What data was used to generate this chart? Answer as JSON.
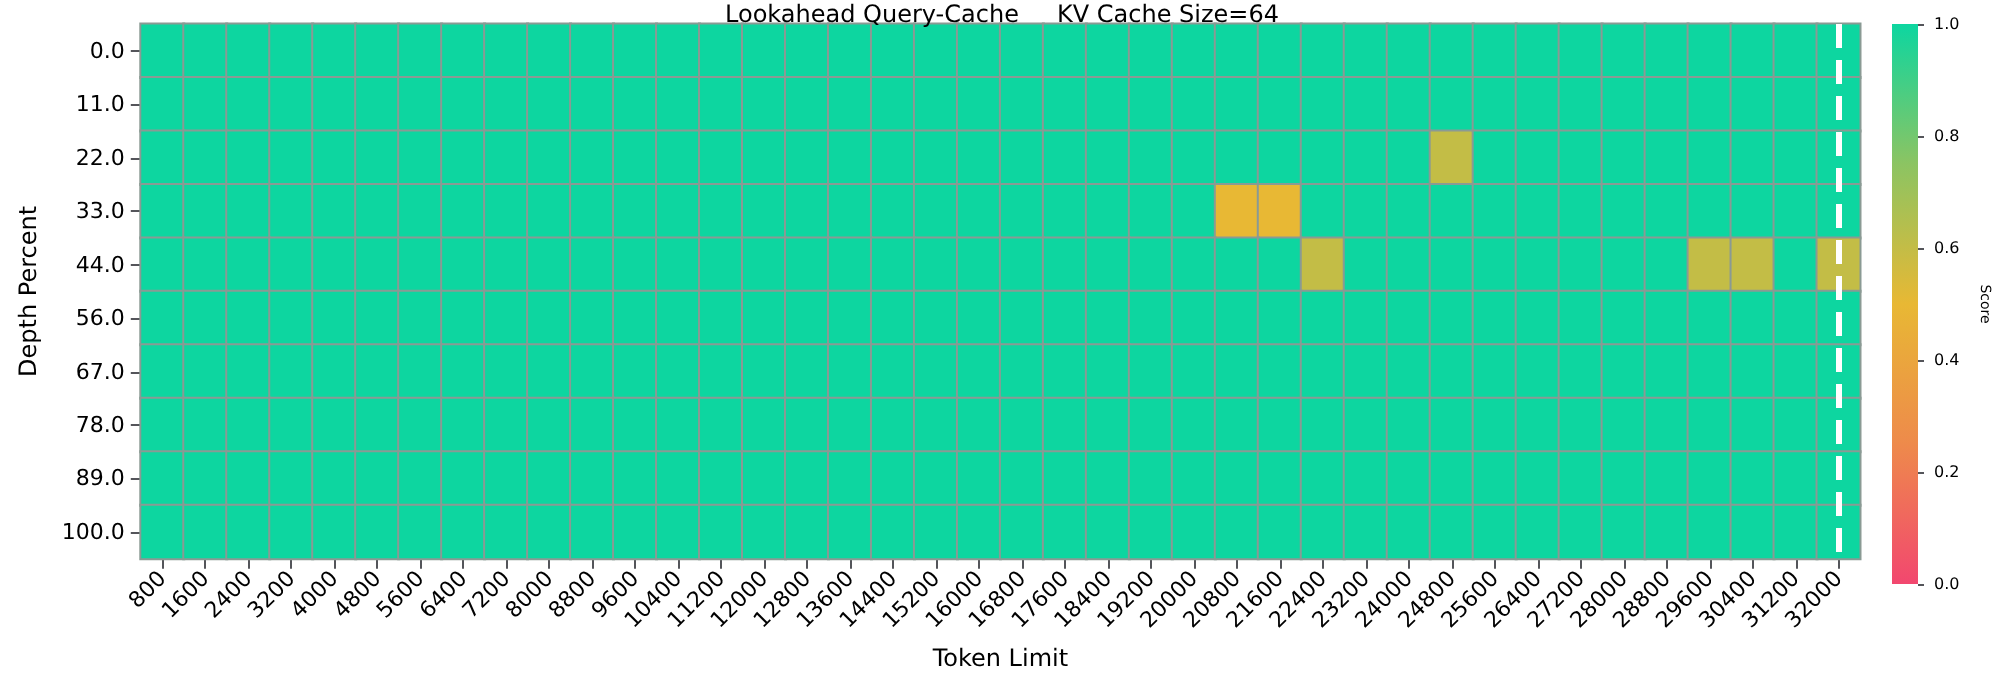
{
  "chart_data": {
    "type": "heatmap",
    "title": "Lookahead Query-Cache     KV Cache Size=64",
    "xlabel": "Token Limit",
    "ylabel": "Depth Percent",
    "clabel": "Score",
    "categories": [
      "800",
      "1600",
      "2400",
      "3200",
      "4000",
      "4800",
      "5600",
      "6400",
      "7200",
      "8000",
      "8800",
      "9600",
      "10400",
      "11200",
      "12000",
      "12800",
      "13600",
      "14400",
      "15200",
      "16000",
      "16800",
      "17600",
      "18400",
      "19200",
      "20000",
      "20800",
      "21600",
      "22400",
      "23200",
      "24000",
      "24800",
      "25600",
      "26400",
      "27200",
      "28000",
      "28800",
      "29600",
      "30400",
      "31200",
      "32000"
    ],
    "y_categories": [
      "0.0",
      "11.0",
      "22.0",
      "33.0",
      "44.0",
      "56.0",
      "67.0",
      "78.0",
      "89.0",
      "100.0"
    ],
    "cells": [
      [
        1,
        1,
        1,
        1,
        1,
        1,
        1,
        1,
        1,
        1,
        1,
        1,
        1,
        1,
        1,
        1,
        1,
        1,
        1,
        1,
        1,
        1,
        1,
        1,
        1,
        1,
        1,
        1,
        1,
        1,
        1,
        1,
        1,
        1,
        1,
        1,
        1,
        1,
        1,
        1
      ],
      [
        1,
        1,
        1,
        1,
        1,
        1,
        1,
        1,
        1,
        1,
        1,
        1,
        1,
        1,
        1,
        1,
        1,
        1,
        1,
        1,
        1,
        1,
        1,
        1,
        1,
        1,
        1,
        1,
        1,
        1,
        1,
        1,
        1,
        1,
        1,
        1,
        1,
        1,
        1,
        1
      ],
      [
        1,
        1,
        1,
        1,
        1,
        1,
        1,
        1,
        1,
        1,
        1,
        1,
        1,
        1,
        1,
        1,
        1,
        1,
        1,
        1,
        1,
        1,
        1,
        1,
        1,
        1,
        1,
        1,
        1,
        1,
        0.6,
        1,
        1,
        1,
        1,
        1,
        1,
        1,
        1,
        1
      ],
      [
        1,
        1,
        1,
        1,
        1,
        1,
        1,
        1,
        1,
        1,
        1,
        1,
        1,
        1,
        1,
        1,
        1,
        1,
        1,
        1,
        1,
        1,
        1,
        1,
        1,
        0.5,
        0.5,
        1,
        1,
        1,
        1,
        1,
        1,
        1,
        1,
        1,
        1,
        1,
        1,
        1
      ],
      [
        1,
        1,
        1,
        1,
        1,
        1,
        1,
        1,
        1,
        1,
        1,
        1,
        1,
        1,
        1,
        1,
        1,
        1,
        1,
        1,
        1,
        1,
        1,
        1,
        1,
        1,
        1,
        0.6,
        1,
        1,
        1,
        1,
        1,
        1,
        1,
        1,
        0.6,
        0.6,
        1,
        0.6
      ],
      [
        1,
        1,
        1,
        1,
        1,
        1,
        1,
        1,
        1,
        1,
        1,
        1,
        1,
        1,
        1,
        1,
        1,
        1,
        1,
        1,
        1,
        1,
        1,
        1,
        1,
        1,
        1,
        1,
        1,
        1,
        1,
        1,
        1,
        1,
        1,
        1,
        1,
        1,
        1,
        1
      ],
      [
        1,
        1,
        1,
        1,
        1,
        1,
        1,
        1,
        1,
        1,
        1,
        1,
        1,
        1,
        1,
        1,
        1,
        1,
        1,
        1,
        1,
        1,
        1,
        1,
        1,
        1,
        1,
        1,
        1,
        1,
        1,
        1,
        1,
        1,
        1,
        1,
        1,
        1,
        1,
        1
      ],
      [
        1,
        1,
        1,
        1,
        1,
        1,
        1,
        1,
        1,
        1,
        1,
        1,
        1,
        1,
        1,
        1,
        1,
        1,
        1,
        1,
        1,
        1,
        1,
        1,
        1,
        1,
        1,
        1,
        1,
        1,
        1,
        1,
        1,
        1,
        1,
        1,
        1,
        1,
        1,
        1
      ],
      [
        1,
        1,
        1,
        1,
        1,
        1,
        1,
        1,
        1,
        1,
        1,
        1,
        1,
        1,
        1,
        1,
        1,
        1,
        1,
        1,
        1,
        1,
        1,
        1,
        1,
        1,
        1,
        1,
        1,
        1,
        1,
        1,
        1,
        1,
        1,
        1,
        1,
        1,
        1,
        1
      ],
      [
        1,
        1,
        1,
        1,
        1,
        1,
        1,
        1,
        1,
        1,
        1,
        1,
        1,
        1,
        1,
        1,
        1,
        1,
        1,
        1,
        1,
        1,
        1,
        1,
        1,
        1,
        1,
        1,
        1,
        1,
        1,
        1,
        1,
        1,
        1,
        1,
        1,
        1,
        1,
        1
      ]
    ],
    "clim": [
      0,
      1
    ],
    "cticks": [
      {
        "value": 0,
        "label": "0.0"
      },
      {
        "value": 0.2,
        "label": "0.2"
      },
      {
        "value": 0.4,
        "label": "0.4"
      },
      {
        "value": 0.6,
        "label": "0.6"
      },
      {
        "value": 0.8,
        "label": "0.8"
      },
      {
        "value": 1,
        "label": "1.0"
      }
    ],
    "ref_lines": [
      {
        "axis": "x",
        "value": "32000",
        "color": "#ffffff",
        "line_style": "dashed"
      }
    ]
  }
}
